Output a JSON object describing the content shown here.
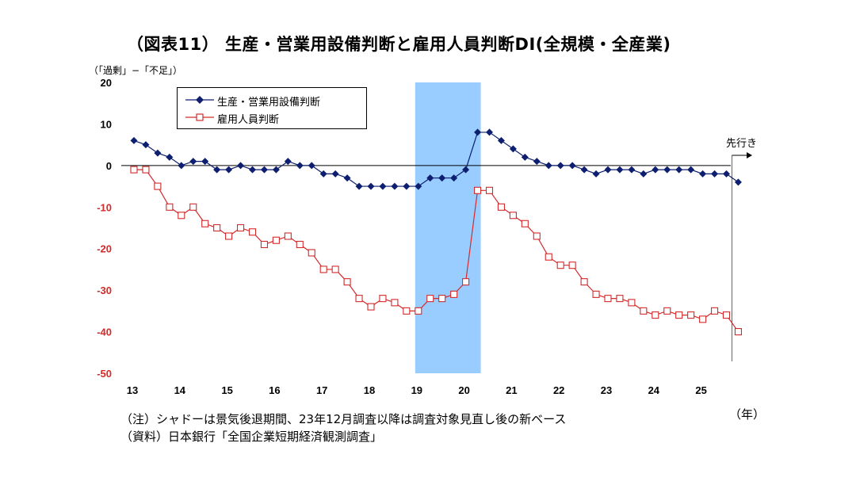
{
  "title": "（図表11） 生産・営業用設備判断と雇用人員判断DI(全規模・全産業)",
  "unit_label": "（「過剰」−「不足」）",
  "year_unit": "（年）",
  "forward_label": "先行き",
  "notes": [
    "（注）シャドーは景気後退期間、23年12月調査以降は調査対象見直し後の新ベース",
    "（資料）日本銀行「全国企業短期経済観測調査」"
  ],
  "colors": {
    "equipment": "#0d1f6e",
    "employment": "#d42a2a",
    "shade": "#99ccff",
    "negative_tick": "#d42a2a"
  },
  "chart_data": {
    "type": "line",
    "title": "（図表11） 生産・営業用設備判断と雇用人員判断DI(全規模・全産業)",
    "xlabel": "（年）",
    "ylabel": "（「過剰」−「不足」）",
    "ylim": [
      -50,
      20
    ],
    "yticks": [
      20,
      10,
      0,
      -10,
      -20,
      -30,
      -40,
      -50
    ],
    "year_ticks": [
      "13",
      "14",
      "15",
      "16",
      "17",
      "18",
      "19",
      "20",
      "21",
      "22",
      "23",
      "24",
      "25"
    ],
    "legend_position": "top-left",
    "grid": false,
    "shade_label": "景気後退期間",
    "shade_range": [
      "2019Q1",
      "2020Q2"
    ],
    "x": [
      "2013Q1",
      "2013Q2",
      "2013Q3",
      "2013Q4",
      "2014Q1",
      "2014Q2",
      "2014Q3",
      "2014Q4",
      "2015Q1",
      "2015Q2",
      "2015Q3",
      "2015Q4",
      "2016Q1",
      "2016Q2",
      "2016Q3",
      "2016Q4",
      "2017Q1",
      "2017Q2",
      "2017Q3",
      "2017Q4",
      "2018Q1",
      "2018Q2",
      "2018Q3",
      "2018Q4",
      "2019Q1",
      "2019Q2",
      "2019Q3",
      "2019Q4",
      "2020Q1",
      "2020Q2",
      "2020Q3",
      "2020Q4",
      "2021Q1",
      "2021Q2",
      "2021Q3",
      "2021Q4",
      "2022Q1",
      "2022Q2",
      "2022Q3",
      "2022Q4",
      "2023Q1",
      "2023Q2",
      "2023Q3",
      "2023Q4",
      "2024Q1",
      "2024Q2",
      "2024Q3",
      "2024Q4",
      "2025Q1",
      "2025Q2",
      "2025Q3",
      "先行き"
    ],
    "series": [
      {
        "name": "生産・営業用設備判断",
        "marker": "filled-diamond",
        "values": [
          6,
          5,
          3,
          2,
          0,
          1,
          1,
          -1,
          -1,
          0,
          -1,
          -1,
          -1,
          1,
          0,
          0,
          -2,
          -2,
          -3,
          -5,
          -5,
          -5,
          -5,
          -5,
          -5,
          -3,
          -3,
          -3,
          -1,
          8,
          8,
          6,
          4,
          2,
          1,
          0,
          0,
          0,
          -1,
          -2,
          -1,
          -1,
          -1,
          -2,
          -1,
          -1,
          -1,
          -1,
          -2,
          -2,
          -2,
          -4
        ]
      },
      {
        "name": "雇用人員判断",
        "marker": "open-square",
        "values": [
          -1,
          -1,
          -5,
          -10,
          -12,
          -10,
          -14,
          -15,
          -17,
          -15,
          -16,
          -19,
          -18,
          -17,
          -19,
          -21,
          -25,
          -25,
          -28,
          -32,
          -34,
          -32,
          -33,
          -35,
          -35,
          -32,
          -32,
          -31,
          -28,
          -6,
          -6,
          -10,
          -12,
          -14,
          -17,
          -22,
          -24,
          -24,
          -28,
          -31,
          -32,
          -32,
          -33,
          -35,
          -36,
          -35,
          -36,
          -36,
          -37,
          -35,
          -36,
          -40
        ]
      }
    ]
  }
}
